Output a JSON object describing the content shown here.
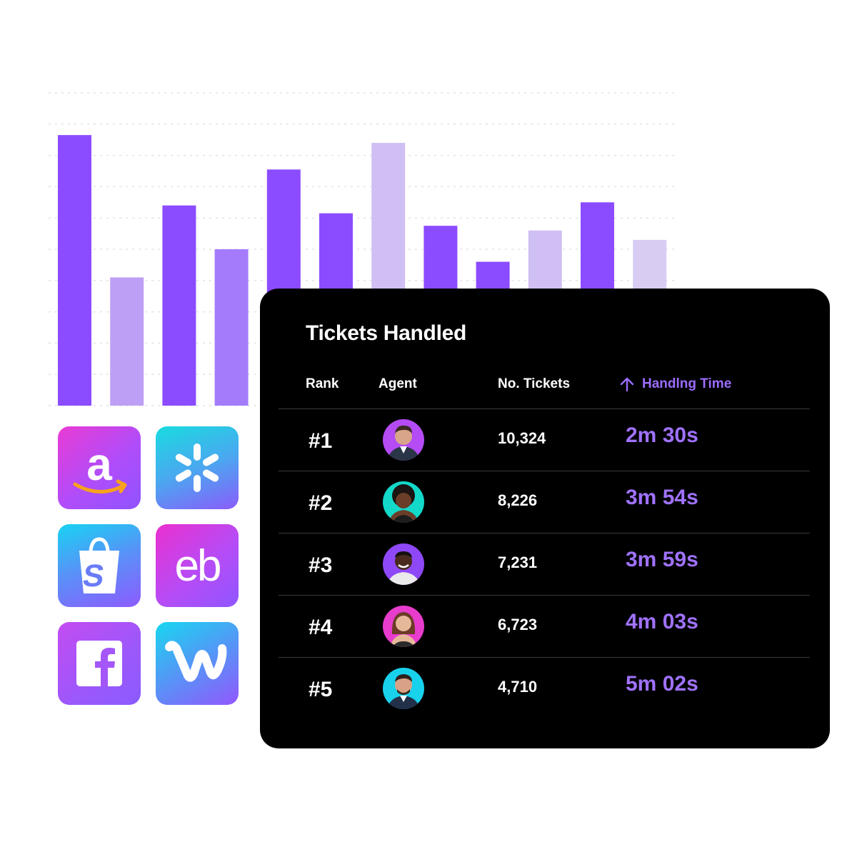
{
  "chart_data": {
    "type": "bar",
    "title": "",
    "xlabel": "",
    "ylabel": "",
    "ylim": [
      0,
      10
    ],
    "grid": true,
    "values": [
      8.65,
      4.1,
      6.4,
      5.0,
      7.55,
      6.15,
      8.4,
      5.75,
      4.6,
      5.6,
      6.5,
      5.3
    ],
    "colors": [
      "#8b4cff",
      "#bd9ff5",
      "#8b4cff",
      "#a47cfb",
      "#8b4cff",
      "#8b4cff",
      "#d0bff4",
      "#8b4cff",
      "#8b4cff",
      "#d0bff4",
      "#8b4cff",
      "#d8ccf3"
    ]
  },
  "integrations": [
    {
      "name": "Amazon",
      "icon": "amazon-icon"
    },
    {
      "name": "Walmart",
      "icon": "walmart-icon"
    },
    {
      "name": "Shopify",
      "icon": "shopify-icon"
    },
    {
      "name": "eBay",
      "icon": "ebay-icon"
    },
    {
      "name": "Facebook",
      "icon": "facebook-icon"
    },
    {
      "name": "Wish",
      "icon": "wish-icon"
    }
  ],
  "panel": {
    "title": "Tickets Handled",
    "columns": {
      "rank": "Rank",
      "agent": "Agent",
      "tickets": "No. Tickets",
      "handling": "Handlng Time",
      "handling_sort_icon": "arrow-up-icon"
    },
    "rows": [
      {
        "rank": "#1",
        "tickets": "10,324",
        "time": "2m 30s",
        "avatar_bg": "#b44bf5"
      },
      {
        "rank": "#2",
        "tickets": "8,226",
        "time": "3m 54s",
        "avatar_bg": "#13d9c9"
      },
      {
        "rank": "#3",
        "tickets": "7,231",
        "time": "3m 59s",
        "avatar_bg": "#8f48f7"
      },
      {
        "rank": "#4",
        "tickets": "6,723",
        "time": "4m 03s",
        "avatar_bg": "#e83ccd"
      },
      {
        "rank": "#5",
        "tickets": "4,710",
        "time": "5m 02s",
        "avatar_bg": "#18d2ec"
      }
    ],
    "accent_color": "#9b6cff"
  }
}
